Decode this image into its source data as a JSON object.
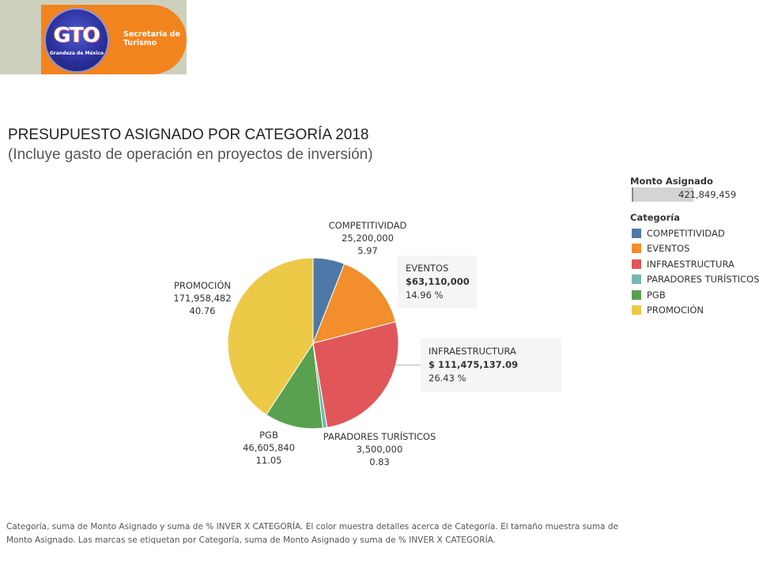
{
  "header": {
    "logo_text": "GTO",
    "logo_subtext": "Grandeza de México",
    "department": "Secretaría de Turismo"
  },
  "title": "PRESUPUESTO ASIGNADO POR CATEGORÍA 2018",
  "subtitle": "(Incluye gasto de operación en proyectos de inversión)",
  "chart_data": {
    "type": "pie",
    "title": "PRESUPUESTO ASIGNADO POR CATEGORÍA 2018",
    "subtitle": "(Incluye gasto de operación en proyectos de inversión)",
    "categories": [
      "COMPETITIVIDAD",
      "EVENTOS",
      "INFRAESTRUCTURA",
      "PARADORES TURÍSTICOS",
      "PGB",
      "PROMOCIÓN"
    ],
    "values": [
      25200000,
      63110000,
      111475137.09,
      3500000,
      46605840,
      171958482
    ],
    "percentages": [
      5.97,
      14.96,
      26.43,
      0.83,
      11.05,
      40.76
    ],
    "colors": [
      "#4e79a7",
      "#f28e2b",
      "#e15759",
      "#76b7b2",
      "#59a14f",
      "#edc948"
    ],
    "value_labels": [
      "25,200,000",
      "$63,110,000",
      "$ 111,475,137.09",
      "3,500,000",
      "46,605,840",
      "171,958,482"
    ],
    "percent_labels": [
      "5.97",
      "14.96 %",
      "26.43 %",
      "0.83",
      "11.05",
      "40.76"
    ],
    "legend": {
      "size_title": "Monto Asignado",
      "size_value": "421,849,459",
      "color_title": "Categoría",
      "placement": "right"
    }
  },
  "footnote": "Categoría, suma de Monto Asignado y suma de % INVER X CATEGORÍA.  El color muestra detalles acerca de Categoría.  El tamaño muestra suma de Monto Asignado.  Las marcas se etiquetan por Categoría, suma de Monto Asignado y suma de % INVER X CATEGORÍA."
}
